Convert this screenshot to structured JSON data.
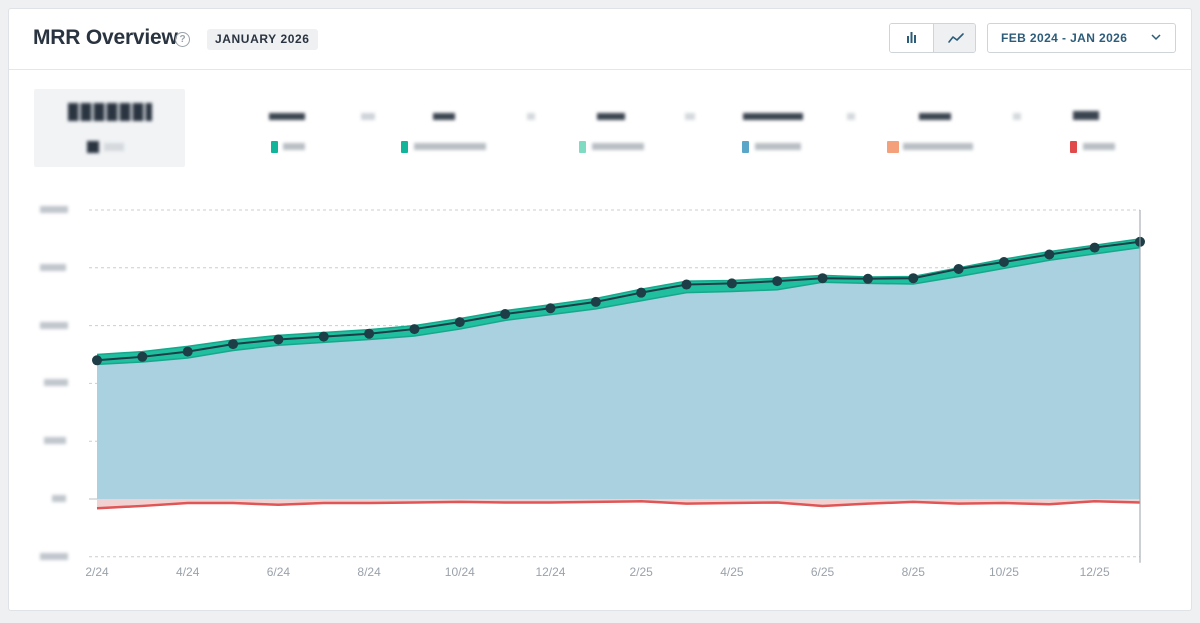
{
  "header": {
    "title": "MRR Overview",
    "help_icon": "question-circle-icon",
    "month_badge": "JANUARY 2026",
    "view_toggle": {
      "bar_icon": "bar-chart-icon",
      "line_icon": "line-chart-icon",
      "active": "line"
    },
    "date_range": {
      "label": "FEB 2024 - JAN 2026",
      "icon": "chevron-down-icon"
    }
  },
  "legend": {
    "swatch_colors": [
      "#13b59a",
      "#13b59a",
      "#7fdcc3",
      "#5aa6c8",
      "#f4a07a",
      "#e04a4a"
    ]
  },
  "colors": {
    "area_fill": "#a9d1df",
    "band_green": "#1fbf9f",
    "line_dark": "#1d3d47",
    "negative_red": "#e05555",
    "negative_fill": "#f0d2d2"
  },
  "chart_data": {
    "type": "area",
    "x": [
      "2/24",
      "3/24",
      "4/24",
      "5/24",
      "6/24",
      "7/24",
      "8/24",
      "9/24",
      "10/24",
      "11/24",
      "12/24",
      "1/25",
      "2/25",
      "3/25",
      "4/25",
      "5/25",
      "6/25",
      "7/25",
      "8/25",
      "9/25",
      "10/25",
      "11/25",
      "12/25",
      "1/26"
    ],
    "x_tick_labels": [
      "2/24",
      "4/24",
      "6/24",
      "8/24",
      "10/24",
      "12/24",
      "2/25",
      "4/25",
      "6/25",
      "8/25",
      "10/25",
      "12/25"
    ],
    "ylim": [
      -1.1,
      5.0
    ],
    "gridlines": [
      5,
      4,
      3,
      2,
      1,
      0,
      -1
    ],
    "grid": true,
    "series": [
      {
        "role": "net_total_line",
        "values": [
          2.4,
          2.46,
          2.55,
          2.68,
          2.76,
          2.81,
          2.86,
          2.94,
          3.06,
          3.2,
          3.3,
          3.41,
          3.57,
          3.71,
          3.73,
          3.77,
          3.82,
          3.81,
          3.82,
          3.98,
          4.1,
          4.23,
          4.35,
          4.45
        ]
      },
      {
        "role": "green_band_top",
        "values": [
          2.5,
          2.55,
          2.64,
          2.75,
          2.83,
          2.88,
          2.93,
          3.0,
          3.12,
          3.26,
          3.36,
          3.47,
          3.63,
          3.77,
          3.78,
          3.82,
          3.87,
          3.84,
          3.85,
          4.0,
          4.15,
          4.28,
          4.39,
          4.5
        ]
      },
      {
        "role": "area_top",
        "values": [
          2.33,
          2.37,
          2.44,
          2.57,
          2.66,
          2.71,
          2.76,
          2.82,
          2.94,
          3.09,
          3.19,
          3.29,
          3.43,
          3.57,
          3.59,
          3.62,
          3.75,
          3.73,
          3.72,
          3.85,
          3.99,
          4.13,
          4.24,
          4.35
        ]
      },
      {
        "role": "negative_line",
        "values": [
          -0.16,
          -0.12,
          -0.07,
          -0.07,
          -0.1,
          -0.07,
          -0.07,
          -0.06,
          -0.05,
          -0.06,
          -0.06,
          -0.05,
          -0.04,
          -0.08,
          -0.07,
          -0.06,
          -0.12,
          -0.08,
          -0.05,
          -0.08,
          -0.07,
          -0.09,
          -0.04,
          -0.06
        ]
      }
    ]
  }
}
